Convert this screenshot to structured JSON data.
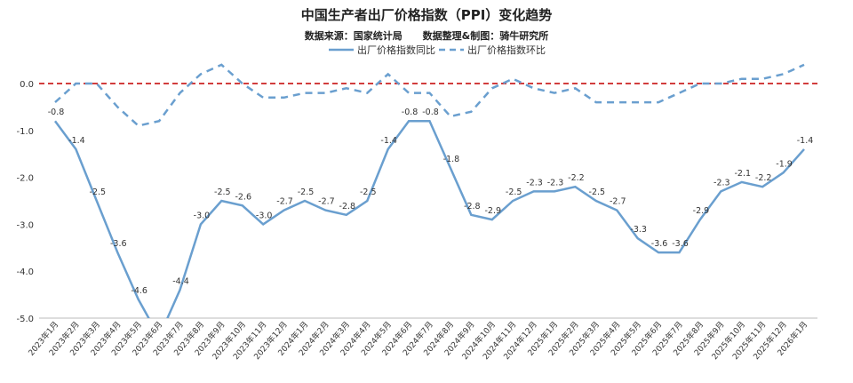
{
  "chart_data": {
    "type": "line",
    "title": "中国生产者出厂价格指数（PPI）变化趋势",
    "subtitle": "数据来源：国家统计局      数据整理&制图：骑牛研究所",
    "categories": [
      "2023年1月",
      "2023年2月",
      "2023年3月",
      "2023年4月",
      "2023年5月",
      "2023年6月",
      "2023年7月",
      "2023年8月",
      "2023年9月",
      "2023年10月",
      "2023年11月",
      "2023年12月",
      "2024年1月",
      "2024年2月",
      "2024年3月",
      "2024年4月",
      "2024年5月",
      "2024年6月",
      "2024年7月",
      "2024年8月",
      "2024年9月",
      "2024年10月",
      "2024年11月",
      "2024年12月",
      "2025年1月",
      "2025年2月",
      "2025年3月",
      "2025年4月",
      "2025年5月",
      "2025年6月",
      "2025年7月",
      "2025年8月",
      "2025年9月",
      "2025年10月",
      "2025年11月",
      "2025年12月",
      "2026年1月"
    ],
    "series": [
      {
        "name": "出厂价格指数同比",
        "color": "#6a9fcf",
        "style": "solid",
        "values": [
          -0.8,
          -1.4,
          -2.5,
          -3.6,
          -4.6,
          -5.4,
          -4.4,
          -3.0,
          -2.5,
          -2.6,
          -3.0,
          -2.7,
          -2.5,
          -2.7,
          -2.8,
          -2.5,
          -1.4,
          -0.8,
          -0.8,
          -1.8,
          -2.8,
          -2.9,
          -2.5,
          -2.3,
          -2.3,
          -2.2,
          -2.5,
          -2.7,
          -3.3,
          -3.6,
          -3.6,
          -2.9,
          -2.3,
          -2.1,
          -2.2,
          -1.9,
          -1.4
        ],
        "labels": [
          "-0.8",
          "-1.4",
          "-2.5",
          "-3.6",
          "-4.6",
          "",
          "-4.4",
          "-3.0",
          "-2.5",
          "-2.6",
          "-3.0",
          "-2.7",
          "-2.5",
          "-2.7",
          "-2.8",
          "-2.5",
          "-1.4",
          "-0.8",
          "-0.8",
          "-1.8",
          "-2.8",
          "-2.9",
          "-2.5",
          "-2.3",
          "-2.3",
          "-2.2",
          "-2.5",
          "-2.7",
          "-3.3",
          "-3.6",
          "-3.6",
          "-2.9",
          "-2.3",
          "-2.1",
          "-2.2",
          "-1.9",
          "-1.4"
        ]
      },
      {
        "name": "出厂价格指数环比",
        "color": "#6a9fcf",
        "style": "dashed",
        "values": [
          -0.4,
          0.0,
          0.0,
          -0.5,
          -0.9,
          -0.8,
          -0.2,
          0.2,
          0.4,
          0.0,
          -0.3,
          -0.3,
          -0.2,
          -0.2,
          -0.1,
          -0.2,
          0.2,
          -0.2,
          -0.2,
          -0.7,
          -0.6,
          -0.1,
          0.1,
          -0.1,
          -0.2,
          -0.1,
          -0.4,
          -0.4,
          -0.4,
          -0.4,
          -0.2,
          0.0,
          0.0,
          0.1,
          0.1,
          0.2,
          0.4
        ]
      }
    ],
    "reference_line": {
      "y": 0.0,
      "color": "#cc2222",
      "style": "dashed"
    },
    "yticks": [
      "0.0",
      "-1.0",
      "-2.0",
      "-3.0",
      "-4.0",
      "-5.0"
    ],
    "ylim": [
      -5.0,
      0.6
    ],
    "legend_position": "top-center",
    "grid": false
  }
}
